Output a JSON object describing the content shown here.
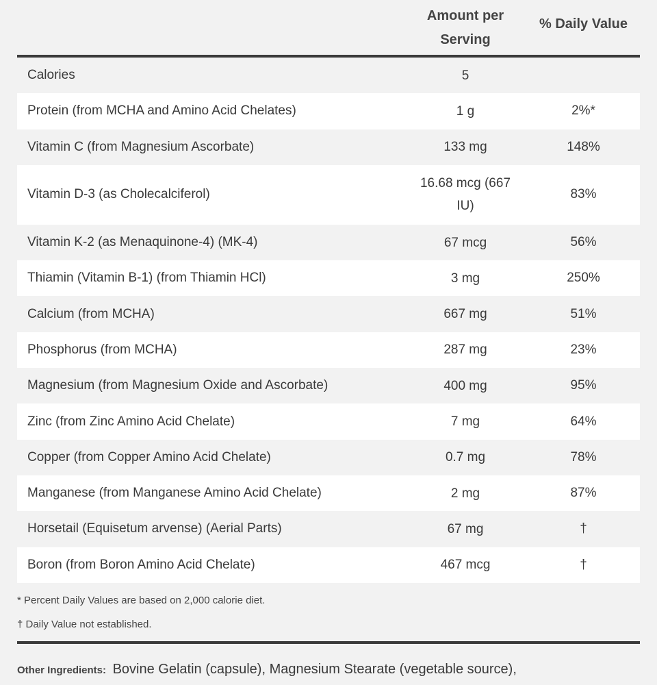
{
  "header": {
    "amount_line1": "Amount per",
    "amount_line2": "Serving",
    "daily_value": "% Daily Value"
  },
  "rows": [
    {
      "name": "Calories",
      "amount": "5",
      "dv": ""
    },
    {
      "name": "Protein (from MCHA and Amino Acid Chelates)",
      "amount": "1 g",
      "dv": "2%*"
    },
    {
      "name": "Vitamin C (from Magnesium Ascorbate)",
      "amount": "133 mg",
      "dv": "148%"
    },
    {
      "name": "Vitamin D-3 (as Cholecalciferol)",
      "amount_line1": "16.68 mcg (667",
      "amount_line2": "IU)",
      "dv": "83%"
    },
    {
      "name": "Vitamin K-2 (as Menaquinone-4) (MK-4)",
      "amount": "67 mcg",
      "dv": "56%"
    },
    {
      "name": "Thiamin (Vitamin B-1) (from Thiamin HCl)",
      "amount": "3 mg",
      "dv": "250%"
    },
    {
      "name": "Calcium (from MCHA)",
      "amount": "667 mg",
      "dv": "51%"
    },
    {
      "name": "Phosphorus (from MCHA)",
      "amount": "287 mg",
      "dv": "23%"
    },
    {
      "name": "Magnesium (from Magnesium Oxide and Ascorbate)",
      "amount": "400 mg",
      "dv": "95%"
    },
    {
      "name": "Zinc (from Zinc Amino Acid Chelate)",
      "amount": "7 mg",
      "dv": "64%"
    },
    {
      "name": "Copper (from Copper Amino Acid Chelate)",
      "amount": "0.7 mg",
      "dv": "78%"
    },
    {
      "name": "Manganese (from Manganese Amino Acid Chelate)",
      "amount": "2 mg",
      "dv": "87%"
    },
    {
      "name": "Horsetail (Equisetum arvense) (Aerial Parts)",
      "amount": "67 mg",
      "dv": "†"
    },
    {
      "name": "Boron (from Boron Amino Acid Chelate)",
      "amount": "467 mcg",
      "dv": "†"
    }
  ],
  "notes": {
    "percent_note": "* Percent Daily Values are based on 2,000 calorie diet.",
    "dagger_note": "† Daily Value not established."
  },
  "other_ingredients": {
    "label": "Other Ingredients:",
    "text": "Bovine Gelatin (capsule), Magnesium Stearate (vegetable source),"
  }
}
